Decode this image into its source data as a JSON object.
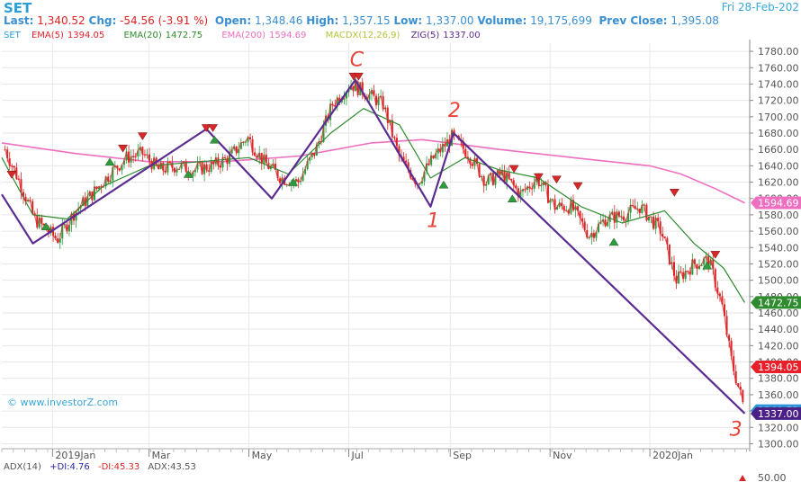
{
  "header": {
    "symbol": "SET",
    "date": "Fri 28-Feb-202",
    "last_label": "Last:",
    "last": "1,340.52",
    "chg_label": "Chg:",
    "chg": "-54.56 (-3.91 %)",
    "open_label": "Open:",
    "open": "1,348.46",
    "high_label": "High:",
    "high": "1,357.15",
    "low_label": "Low:",
    "low": "1,337.00",
    "volume_label": "Volume:",
    "volume": "19,175,699",
    "prev_label": "Prev Close:",
    "prev": "1,395.08"
  },
  "legend": {
    "set": "SET",
    "ema5_name": "EMA(5)",
    "ema5_val": "1394.05",
    "ema20_name": "EMA(20)",
    "ema20_val": "1472.75",
    "ema200_name": "EMA(200)",
    "ema200_val": "1594.69",
    "macdx": "MACDX(12,26,9)",
    "zig_name": "ZIG(5)",
    "zig_val": "1337.00"
  },
  "colors": {
    "ema5": "#e8202a",
    "ema20": "#2e8b2e",
    "ema200": "#ee6fc0",
    "zig": "#5b2c91",
    "up": "#2e9b3e",
    "down": "#d62828",
    "price_tag": "#2b96d8",
    "zig_tag": "#4a1f86",
    "annotation": "#e8443a"
  },
  "watermark": "© www.investorZ.com",
  "adx": {
    "adx": "ADX(14)",
    "pdi": "+DI:4.76",
    "mdi": "-DI:45.33",
    "val": "ADX:43.53",
    "axis_label": "50.00"
  },
  "chart_data": {
    "type": "line",
    "x_labels": [
      "2019Jan",
      "Mar",
      "May",
      "Jul",
      "Sep",
      "Nov",
      "2020Jan"
    ],
    "y_ticks": [
      1300,
      1320,
      1340,
      1360,
      1380,
      1400,
      1420,
      1440,
      1460,
      1480,
      1500,
      1520,
      1540,
      1560,
      1580,
      1600,
      1620,
      1640,
      1660,
      1680,
      1700,
      1720,
      1740,
      1760,
      1780
    ],
    "ylim": [
      1295,
      1790
    ],
    "grid": true,
    "price_series": {
      "name": "SET",
      "x": [
        "2018-12-03",
        "2018-12-12",
        "2018-12-21",
        "2019-01-04",
        "2019-01-15",
        "2019-01-25",
        "2019-02-05",
        "2019-02-15",
        "2019-02-25",
        "2019-03-07",
        "2019-03-18",
        "2019-03-28",
        "2019-04-09",
        "2019-04-19",
        "2019-04-30",
        "2019-05-10",
        "2019-05-21",
        "2019-05-31",
        "2019-06-11",
        "2019-06-21",
        "2019-07-02",
        "2019-07-11",
        "2019-07-22",
        "2019-08-01",
        "2019-08-12",
        "2019-08-22",
        "2019-09-02",
        "2019-09-12",
        "2019-09-23",
        "2019-10-03",
        "2019-10-14",
        "2019-10-24",
        "2019-11-04",
        "2019-11-14",
        "2019-11-25",
        "2019-12-05",
        "2019-12-16",
        "2019-12-26",
        "2020-01-08",
        "2020-01-17",
        "2020-01-28",
        "2020-02-06",
        "2020-02-14",
        "2020-02-20",
        "2020-02-28"
      ],
      "close": [
        1660,
        1620,
        1575,
        1550,
        1585,
        1605,
        1630,
        1650,
        1655,
        1635,
        1640,
        1635,
        1640,
        1650,
        1675,
        1645,
        1625,
        1620,
        1660,
        1715,
        1740,
        1730,
        1715,
        1650,
        1620,
        1650,
        1675,
        1655,
        1620,
        1630,
        1605,
        1625,
        1590,
        1590,
        1555,
        1575,
        1580,
        1590,
        1560,
        1500,
        1520,
        1525,
        1470,
        1400,
        1340.52
      ]
    },
    "zigzag": {
      "name": "ZIG(5)",
      "x": [
        "2018-12-01",
        "2018-12-20",
        "2019-04-05",
        "2019-05-15",
        "2019-07-05",
        "2019-08-20",
        "2019-09-03",
        "2020-02-28"
      ],
      "y": [
        1605,
        1545,
        1685,
        1600,
        1745,
        1590,
        1680,
        1337
      ]
    },
    "ema20": {
      "name": "EMA(20)",
      "x": [
        "2018-12-01",
        "2018-12-20",
        "2019-01-10",
        "2019-02-01",
        "2019-03-01",
        "2019-04-01",
        "2019-05-01",
        "2019-05-25",
        "2019-06-20",
        "2019-07-10",
        "2019-08-01",
        "2019-08-20",
        "2019-09-10",
        "2019-10-01",
        "2019-10-25",
        "2019-11-20",
        "2019-12-15",
        "2020-01-10",
        "2020-01-28",
        "2020-02-15",
        "2020-02-28"
      ],
      "y": [
        1650,
        1580,
        1575,
        1615,
        1640,
        1645,
        1650,
        1630,
        1680,
        1710,
        1690,
        1625,
        1650,
        1635,
        1625,
        1590,
        1570,
        1585,
        1545,
        1515,
        1472.75
      ]
    },
    "ema200": {
      "name": "EMA(200)",
      "x": [
        "2018-12-01",
        "2019-01-15",
        "2019-03-01",
        "2019-04-15",
        "2019-06-01",
        "2019-07-15",
        "2019-08-15",
        "2019-10-01",
        "2019-11-15",
        "2020-01-01",
        "2020-01-20",
        "2020-02-10",
        "2020-02-28"
      ],
      "y": [
        1668,
        1655,
        1645,
        1645,
        1652,
        1668,
        1672,
        1660,
        1650,
        1640,
        1630,
        1612,
        1594.69
      ]
    },
    "annotations": [
      {
        "label": "C",
        "x": "2019-07-05",
        "y": 1762
      },
      {
        "label": "1",
        "x": "2019-08-21",
        "y": 1565
      },
      {
        "label": "2",
        "x": "2019-09-03",
        "y": 1700
      },
      {
        "label": "3",
        "x": "2020-02-22",
        "y": 1310
      }
    ],
    "markers_down": [
      {
        "x": "2018-12-07",
        "y": 1628
      },
      {
        "x": "2019-02-13",
        "y": 1660
      },
      {
        "x": "2019-02-25",
        "y": 1675
      },
      {
        "x": "2019-04-05",
        "y": 1685
      },
      {
        "x": "2019-04-09",
        "y": 1685
      },
      {
        "x": "2019-07-04",
        "y": 1748
      },
      {
        "x": "2019-07-07",
        "y": 1748
      },
      {
        "x": "2019-10-10",
        "y": 1635
      },
      {
        "x": "2019-10-25",
        "y": 1625
      },
      {
        "x": "2019-11-05",
        "y": 1622
      },
      {
        "x": "2019-11-18",
        "y": 1614
      },
      {
        "x": "2020-01-16",
        "y": 1606
      },
      {
        "x": "2020-02-10",
        "y": 1530
      }
    ],
    "markers_up": [
      {
        "x": "2018-12-28",
        "y": 1566
      },
      {
        "x": "2019-02-05",
        "y": 1645
      },
      {
        "x": "2019-03-25",
        "y": 1630
      },
      {
        "x": "2019-04-10",
        "y": 1672
      },
      {
        "x": "2019-05-28",
        "y": 1620
      },
      {
        "x": "2019-08-28",
        "y": 1617
      },
      {
        "x": "2019-10-09",
        "y": 1600
      },
      {
        "x": "2019-12-10",
        "y": 1547
      },
      {
        "x": "2020-02-05",
        "y": 1518
      }
    ],
    "tags": [
      {
        "label": "1594.69",
        "y": 1594.69,
        "color": "ema200"
      },
      {
        "label": "1472.75",
        "y": 1472.75,
        "color": "ema20"
      },
      {
        "label": "1394.05",
        "y": 1394.05,
        "color": "ema5"
      },
      {
        "label": "1340.52",
        "y": 1340.52,
        "color": "price_tag"
      },
      {
        "label": "1337.00",
        "y": 1337.0,
        "color": "zig_tag"
      }
    ]
  }
}
